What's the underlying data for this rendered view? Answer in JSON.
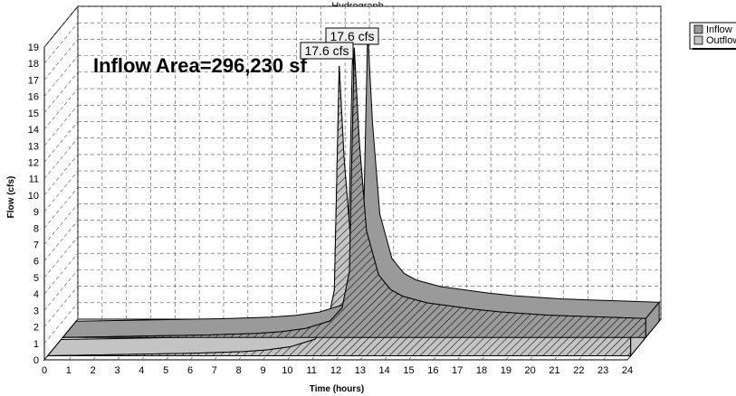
{
  "chart_data": {
    "type": "area",
    "title": "Hydrograph",
    "annotation": "Inflow Area=296,230 sf",
    "xlabel": "Time  (hours)",
    "ylabel": "Flow  (cfs)",
    "xlim": [
      0,
      24
    ],
    "ylim": [
      0,
      19
    ],
    "x_ticks": [
      0,
      1,
      2,
      3,
      4,
      5,
      6,
      7,
      8,
      9,
      10,
      11,
      12,
      13,
      14,
      15,
      16,
      17,
      18,
      19,
      20,
      21,
      22,
      23,
      24
    ],
    "y_ticks": [
      0,
      1,
      2,
      3,
      4,
      5,
      6,
      7,
      8,
      9,
      10,
      11,
      12,
      13,
      14,
      15,
      16,
      17,
      18,
      19
    ],
    "grid": true,
    "legend_position": "top-right",
    "peak_labels": [
      "17.6 cfs",
      "17.6 cfs"
    ],
    "series": [
      {
        "name": "Inflow",
        "color": "#9a9a9a",
        "x": [
          0,
          2,
          4,
          6,
          8,
          9,
          10,
          11,
          11.5,
          11.8,
          12,
          12.2,
          12.5,
          13,
          13.5,
          14,
          15,
          16,
          17,
          18,
          19,
          20,
          21,
          22,
          23,
          24
        ],
        "y": [
          0,
          0.05,
          0.1,
          0.15,
          0.25,
          0.35,
          0.55,
          1.0,
          1.8,
          4.0,
          17.6,
          12.0,
          6.5,
          3.8,
          2.9,
          2.5,
          2.1,
          1.9,
          1.7,
          1.55,
          1.45,
          1.35,
          1.3,
          1.25,
          1.2,
          1.15
        ]
      },
      {
        "name": "Outflow",
        "color": "#c4c4c4",
        "x": [
          0,
          2,
          4,
          6,
          8,
          9,
          10,
          11,
          11.5,
          11.8,
          12,
          12.2,
          12.5,
          13,
          13.5,
          14,
          15,
          16,
          17,
          18,
          19,
          20,
          21,
          22,
          23,
          24
        ],
        "y": [
          0,
          0.05,
          0.1,
          0.15,
          0.25,
          0.35,
          0.55,
          1.0,
          1.8,
          4.0,
          17.6,
          12.0,
          6.5,
          3.8,
          2.9,
          2.5,
          2.1,
          1.9,
          1.7,
          1.55,
          1.45,
          1.35,
          1.3,
          1.25,
          1.2,
          1.15
        ]
      }
    ]
  }
}
